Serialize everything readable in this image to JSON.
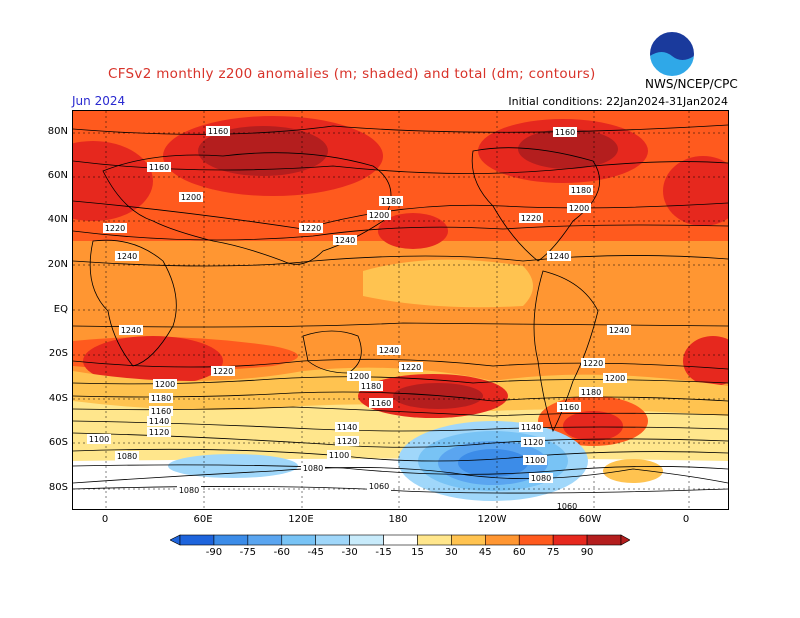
{
  "title": "CFSv2 monthly z200 anomalies (m; shaded) and total (dm; contours)",
  "period": "Jun 2024",
  "initial_conditions": "Initial conditions: 22Jan2024-31Jan2024",
  "agency": "NWS/NCEP/CPC",
  "logo_text": "NOAA",
  "lat_labels": [
    "80N",
    "60N",
    "40N",
    "20N",
    "EQ",
    "20S",
    "40S",
    "60S",
    "80S"
  ],
  "lon_labels": [
    "0",
    "60E",
    "120E",
    "180",
    "120W",
    "60W",
    "0"
  ],
  "contour_labels": [
    "1160",
    "1180",
    "1200",
    "1220",
    "1240",
    "1100",
    "1080",
    "1060",
    "1120",
    "1140"
  ],
  "colorbar": {
    "labels": [
      "-90",
      "-75",
      "-60",
      "-45",
      "-30",
      "-15",
      "15",
      "30",
      "45",
      "60",
      "75",
      "90"
    ],
    "colors": [
      "#1e64dc",
      "#3c8ce8",
      "#5aa5f0",
      "#78c3f5",
      "#a0d7fa",
      "#c8ebfb",
      "#ffffff",
      "#ffe68c",
      "#ffc350",
      "#ff9632",
      "#ff5a1e",
      "#e6281e",
      "#b41e1e"
    ]
  }
}
